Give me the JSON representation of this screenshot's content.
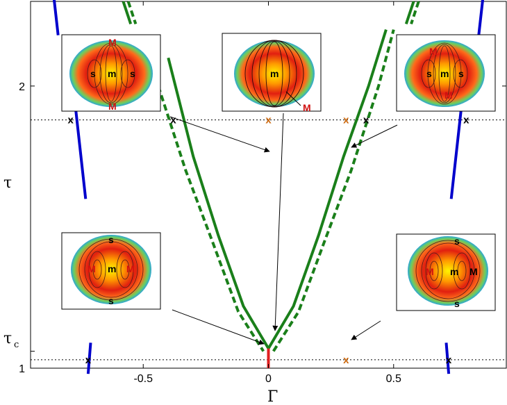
{
  "chart_data": {
    "type": "line",
    "title": "",
    "xlabel": "Γ",
    "ylabel": "τ",
    "xlim": [
      -0.95,
      0.95
    ],
    "ylim": [
      1.0,
      2.3
    ],
    "x_ticks": [
      "-0.5",
      "0",
      "0.5"
    ],
    "y_ticks": [
      "1",
      "2"
    ],
    "extra_y_label": {
      "text": "τ",
      "subscript": "c",
      "value": 1.06
    },
    "reference_lines": [
      {
        "name": "upper-dotted",
        "y": 1.88
      },
      {
        "name": "lower-dotted",
        "y": 1.03
      }
    ],
    "series": [
      {
        "color": "#0000cc",
        "style": "solid",
        "points": [
          [
            -0.86,
            2.34
          ],
          [
            -0.84,
            2.18
          ]
        ]
      },
      {
        "color": "#0000cc",
        "style": "solid",
        "points": [
          [
            -0.78,
            2.0
          ],
          [
            -0.73,
            1.6
          ]
        ]
      },
      {
        "color": "#0000cc",
        "style": "solid",
        "points": [
          [
            -0.71,
            1.09
          ],
          [
            -0.72,
            0.98
          ]
        ]
      },
      {
        "color": "#0000cc",
        "style": "solid",
        "points": [
          [
            0.86,
            2.34
          ],
          [
            0.84,
            2.18
          ]
        ]
      },
      {
        "color": "#0000cc",
        "style": "solid",
        "points": [
          [
            0.78,
            2.0
          ],
          [
            0.73,
            1.6
          ]
        ]
      },
      {
        "color": "#0000cc",
        "style": "solid",
        "points": [
          [
            0.71,
            1.09
          ],
          [
            0.72,
            0.98
          ]
        ]
      },
      {
        "color": "#1a7f1a",
        "style": "solid",
        "points": [
          [
            -0.4,
            2.1
          ],
          [
            -0.3,
            1.75
          ],
          [
            -0.2,
            1.47
          ],
          [
            -0.1,
            1.22
          ],
          [
            0.0,
            1.07
          ]
        ]
      },
      {
        "color": "#1a7f1a",
        "style": "solid",
        "points": [
          [
            0.0,
            1.07
          ],
          [
            0.1,
            1.22
          ],
          [
            0.2,
            1.47
          ],
          [
            0.3,
            1.75
          ],
          [
            0.4,
            2.0
          ],
          [
            0.47,
            2.2
          ]
        ]
      },
      {
        "color": "#1a7f1a",
        "style": "dashed",
        "points": [
          [
            -0.44,
            2.0
          ],
          [
            -0.33,
            1.7
          ],
          [
            -0.22,
            1.44
          ],
          [
            -0.12,
            1.2
          ],
          [
            -0.02,
            1.06
          ]
        ]
      },
      {
        "color": "#1a7f1a",
        "style": "dashed",
        "points": [
          [
            0.02,
            1.06
          ],
          [
            0.12,
            1.2
          ],
          [
            0.22,
            1.44
          ],
          [
            0.33,
            1.7
          ],
          [
            0.44,
            2.0
          ],
          [
            0.5,
            2.2
          ]
        ]
      },
      {
        "color": "#1a7f1a",
        "style": "solid",
        "points": [
          [
            -0.58,
            2.3
          ],
          [
            -0.55,
            2.22
          ]
        ]
      },
      {
        "color": "#1a7f1a",
        "style": "dashed",
        "points": [
          [
            -0.56,
            2.3
          ],
          [
            -0.53,
            2.22
          ]
        ]
      },
      {
        "color": "#1a7f1a",
        "style": "solid",
        "points": [
          [
            0.58,
            2.3
          ],
          [
            0.55,
            2.22
          ]
        ]
      },
      {
        "color": "#1a7f1a",
        "style": "dashed",
        "points": [
          [
            0.6,
            2.3
          ],
          [
            0.57,
            2.22
          ]
        ]
      },
      {
        "color": "#e02020",
        "style": "solid",
        "points": [
          [
            0.0,
            1.07
          ],
          [
            0.0,
            1.0
          ]
        ]
      }
    ],
    "markers": [
      {
        "x": -0.79,
        "y": 1.88,
        "text": "x",
        "color": "#000000"
      },
      {
        "x": -0.38,
        "y": 1.88,
        "text": "x",
        "color": "#000000"
      },
      {
        "x": 0.0,
        "y": 1.88,
        "text": "x",
        "color": "#cc6a10"
      },
      {
        "x": 0.31,
        "y": 1.88,
        "text": "x",
        "color": "#cc6a10"
      },
      {
        "x": 0.39,
        "y": 1.88,
        "text": "x",
        "color": "#000000"
      },
      {
        "x": 0.79,
        "y": 1.88,
        "text": "x",
        "color": "#000000"
      },
      {
        "x": -0.72,
        "y": 1.03,
        "text": "x",
        "color": "#000000"
      },
      {
        "x": 0.31,
        "y": 1.03,
        "text": "x",
        "color": "#cc6a10"
      },
      {
        "x": 0.72,
        "y": 1.03,
        "text": "x",
        "color": "#000000"
      }
    ],
    "insets": [
      {
        "id": "top-left",
        "labels": [
          "M",
          "s",
          "m",
          "s",
          "M"
        ]
      },
      {
        "id": "top-center",
        "labels": [
          "m",
          "M"
        ]
      },
      {
        "id": "top-right",
        "labels": [
          "M",
          "s",
          "m",
          "s",
          "M"
        ]
      },
      {
        "id": "bottom-left",
        "labels": [
          "s",
          "M",
          "m",
          "M",
          "s"
        ]
      },
      {
        "id": "bottom-right",
        "labels": [
          "s",
          "M",
          "m",
          "M",
          "s"
        ]
      }
    ],
    "grid": false,
    "legend": "none"
  }
}
